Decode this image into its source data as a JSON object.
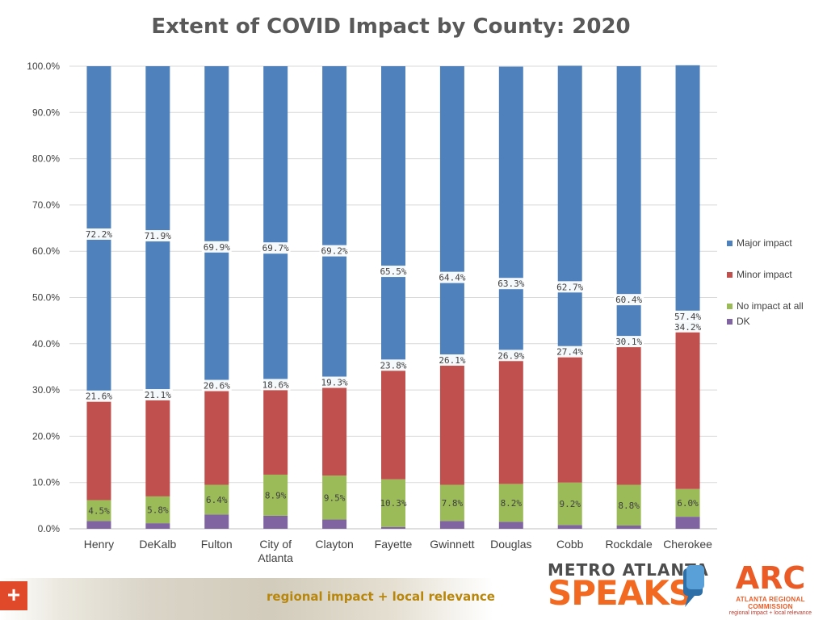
{
  "chart_data": {
    "type": "bar",
    "stacked": true,
    "title": "Extent of COVID Impact by County: 2020",
    "categories": [
      [
        "Henry"
      ],
      [
        "DeKalb"
      ],
      [
        "Fulton"
      ],
      [
        "City of",
        "Atlanta"
      ],
      [
        "Clayton"
      ],
      [
        "Fayette"
      ],
      [
        "Gwinnett"
      ],
      [
        "Douglas"
      ],
      [
        "Cobb"
      ],
      [
        "Rockdale"
      ],
      [
        "Cherokee"
      ]
    ],
    "series": [
      {
        "name": "DK",
        "color": "#8064a2",
        "values": [
          1.7,
          1.2,
          3.1,
          2.8,
          2.0,
          0.4,
          1.7,
          1.5,
          0.8,
          0.7,
          2.6
        ]
      },
      {
        "name": "No impact at all",
        "color": "#9bbb59",
        "values": [
          4.5,
          5.8,
          6.4,
          8.9,
          9.5,
          10.3,
          7.8,
          8.2,
          9.2,
          8.8,
          6.0
        ]
      },
      {
        "name": "Minor impact",
        "color": "#c0504d",
        "values": [
          21.6,
          21.1,
          20.6,
          18.6,
          19.3,
          23.8,
          26.1,
          26.9,
          27.4,
          30.1,
          34.2
        ]
      },
      {
        "name": "Major impact",
        "color": "#4f81bd",
        "values": [
          72.2,
          71.9,
          69.9,
          69.7,
          69.2,
          65.5,
          64.4,
          63.3,
          62.7,
          60.4,
          57.4
        ]
      }
    ],
    "data_labels": {
      "No impact at all": [
        "4.5%",
        "5.8%",
        "6.4%",
        "8.9%",
        "9.5%",
        "10.3%",
        "7.8%",
        "8.2%",
        "9.2%",
        "8.8%",
        "6.0%"
      ],
      "Minor impact": [
        "21.6%",
        "21.1%",
        "20.6%",
        "18.6%",
        "19.3%",
        "23.8%",
        "26.1%",
        "26.9%",
        "27.4%",
        "30.1%",
        "34.2%"
      ],
      "Major impact": [
        "72.2%",
        "71.9%",
        "69.9%",
        "69.7%",
        "69.2%",
        "65.5%",
        "64.4%",
        "63.3%",
        "62.7%",
        "60.4%",
        "57.4%"
      ]
    },
    "y_ticks": [
      "0.0%",
      "10.0%",
      "20.0%",
      "30.0%",
      "40.0%",
      "50.0%",
      "60.0%",
      "70.0%",
      "80.0%",
      "90.0%",
      "100.0%"
    ],
    "ylim": [
      0,
      100
    ],
    "grid": true,
    "legend": {
      "position": "right",
      "items": [
        {
          "label": "Major impact",
          "color": "#4f81bd"
        },
        {
          "label": "Minor impact",
          "color": "#c0504d"
        },
        {
          "label": "No impact at all",
          "color": "#9bbb59"
        },
        {
          "label": "DK",
          "color": "#8064a2"
        }
      ]
    }
  },
  "footer": {
    "plus": "+",
    "tagline": "regional impact + local relevance",
    "mas_logo_top": "METRO ATLANTA",
    "mas_logo_bottom": "SPEAKS",
    "arc_mark": "ARC",
    "arc_name": "ATLANTA REGIONAL COMMISSION",
    "arc_tagline": "regional impact + local relevance"
  }
}
